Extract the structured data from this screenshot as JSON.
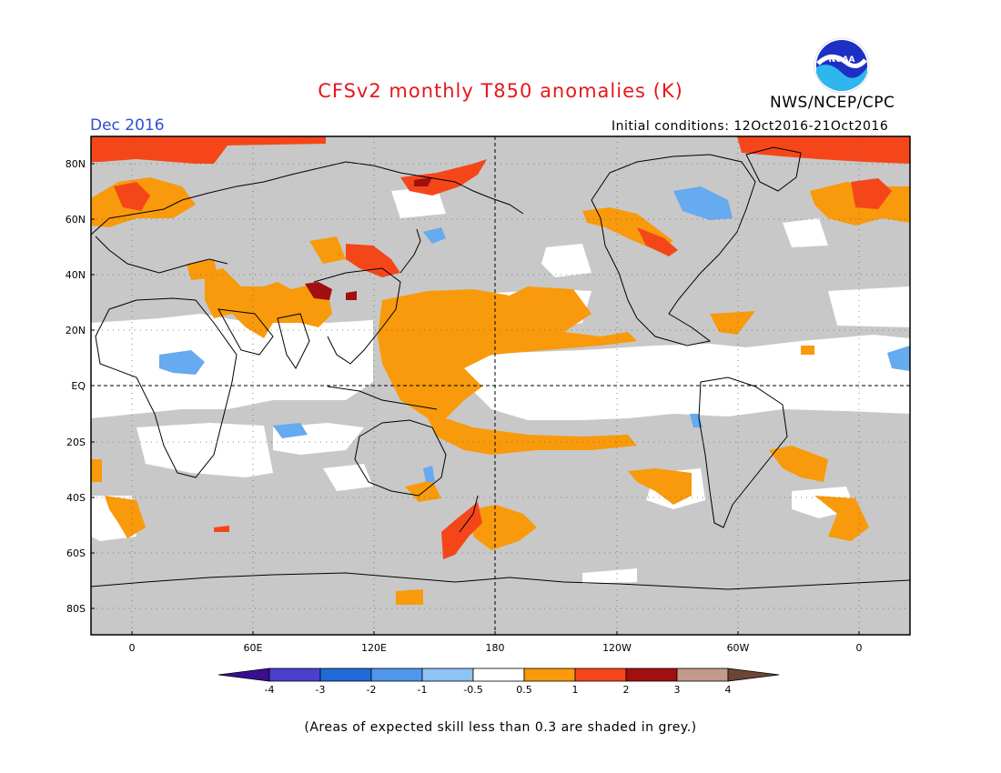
{
  "title": "CFSv2 monthly T850 anomalies (K)",
  "period": "Dec 2016",
  "initial_conditions": "Initial conditions: 12Oct2016-21Oct2016",
  "agency": "NWS/NCEP/CPC",
  "logo_text": "NOAA",
  "footnote": "(Areas of expected skill less than 0.3 are shaded in grey.)",
  "lat_labels": [
    "80N",
    "60N",
    "40N",
    "20N",
    "EQ",
    "20S",
    "40S",
    "60S",
    "80S"
  ],
  "lon_labels": [
    "0",
    "60E",
    "120E",
    "180",
    "120W",
    "60W",
    "0"
  ],
  "legend": {
    "labels": [
      "-4",
      "-3",
      "-2",
      "-1",
      "-0.5",
      "0.5",
      "1",
      "2",
      "3",
      "4"
    ],
    "colors": [
      "#3a0f8f",
      "#4a3fcf",
      "#1f6ad6",
      "#4f96ef",
      "#8fc2f5",
      "#ffffff",
      "#f89a0b",
      "#f5461a",
      "#a10f10",
      "#c29a8a",
      "#6b4536"
    ]
  },
  "colors": {
    "grey": "#c8c8c8",
    "orange": "#f89a0b",
    "red": "#f5461a",
    "darkred": "#a10f10",
    "lightblue": "#66aaf0"
  }
}
